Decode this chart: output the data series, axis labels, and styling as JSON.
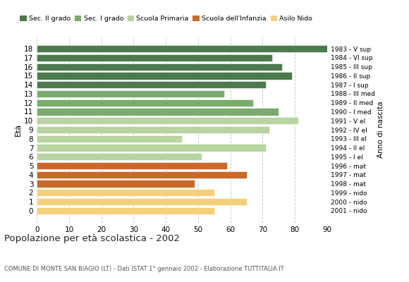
{
  "ages": [
    18,
    17,
    16,
    15,
    14,
    13,
    12,
    11,
    10,
    9,
    8,
    7,
    6,
    5,
    4,
    3,
    2,
    1,
    0
  ],
  "years": [
    "1983 - V sup",
    "1984 - VI sup",
    "1985 - III sup",
    "1986 - II sup",
    "1987 - I sup",
    "1988 - III med",
    "1989 - II med",
    "1990 - I med",
    "1991 - V el",
    "1992 - IV el",
    "1993 - III el",
    "1994 - II el",
    "1995 - I el",
    "1996 - mat",
    "1997 - mat",
    "1998 - mat",
    "1999 - nido",
    "2000 - nido",
    "2001 - nido"
  ],
  "values": [
    90,
    73,
    76,
    79,
    71,
    58,
    67,
    75,
    81,
    72,
    45,
    71,
    51,
    59,
    65,
    49,
    55,
    65,
    55
  ],
  "colors": [
    "#4d7a4d",
    "#4d7a4d",
    "#4d7a4d",
    "#4d7a4d",
    "#4d7a4d",
    "#7aab6e",
    "#7aab6e",
    "#7aab6e",
    "#b8d4a0",
    "#b8d4a0",
    "#b8d4a0",
    "#b8d4a0",
    "#b8d4a0",
    "#c8692a",
    "#c8692a",
    "#c8692a",
    "#f5d07a",
    "#f5d07a",
    "#f5d07a"
  ],
  "legend_labels": [
    "Sec. II grado",
    "Sec. I grado",
    "Scuola Primaria",
    "Scuola dell'Infanzia",
    "Asilo Nido"
  ],
  "legend_colors": [
    "#4d7a4d",
    "#7aab6e",
    "#b8d4a0",
    "#c8692a",
    "#f5d07a"
  ],
  "xlim": [
    0,
    90
  ],
  "xticks": [
    0,
    10,
    20,
    30,
    40,
    50,
    60,
    70,
    80,
    90
  ],
  "title": "Popolazione per età scolastica - 2002",
  "subtitle": "COMUNE DI MONTE SAN BIAGIO (LT) - Dati ISTAT 1° gennaio 2002 - Elaborazione TUTTITALIA.IT",
  "ylabel_left": "Età",
  "ylabel_right": "Anno di nascita",
  "bar_height": 0.82,
  "grid_color": "#cccccc",
  "bg_color": "#ffffff"
}
